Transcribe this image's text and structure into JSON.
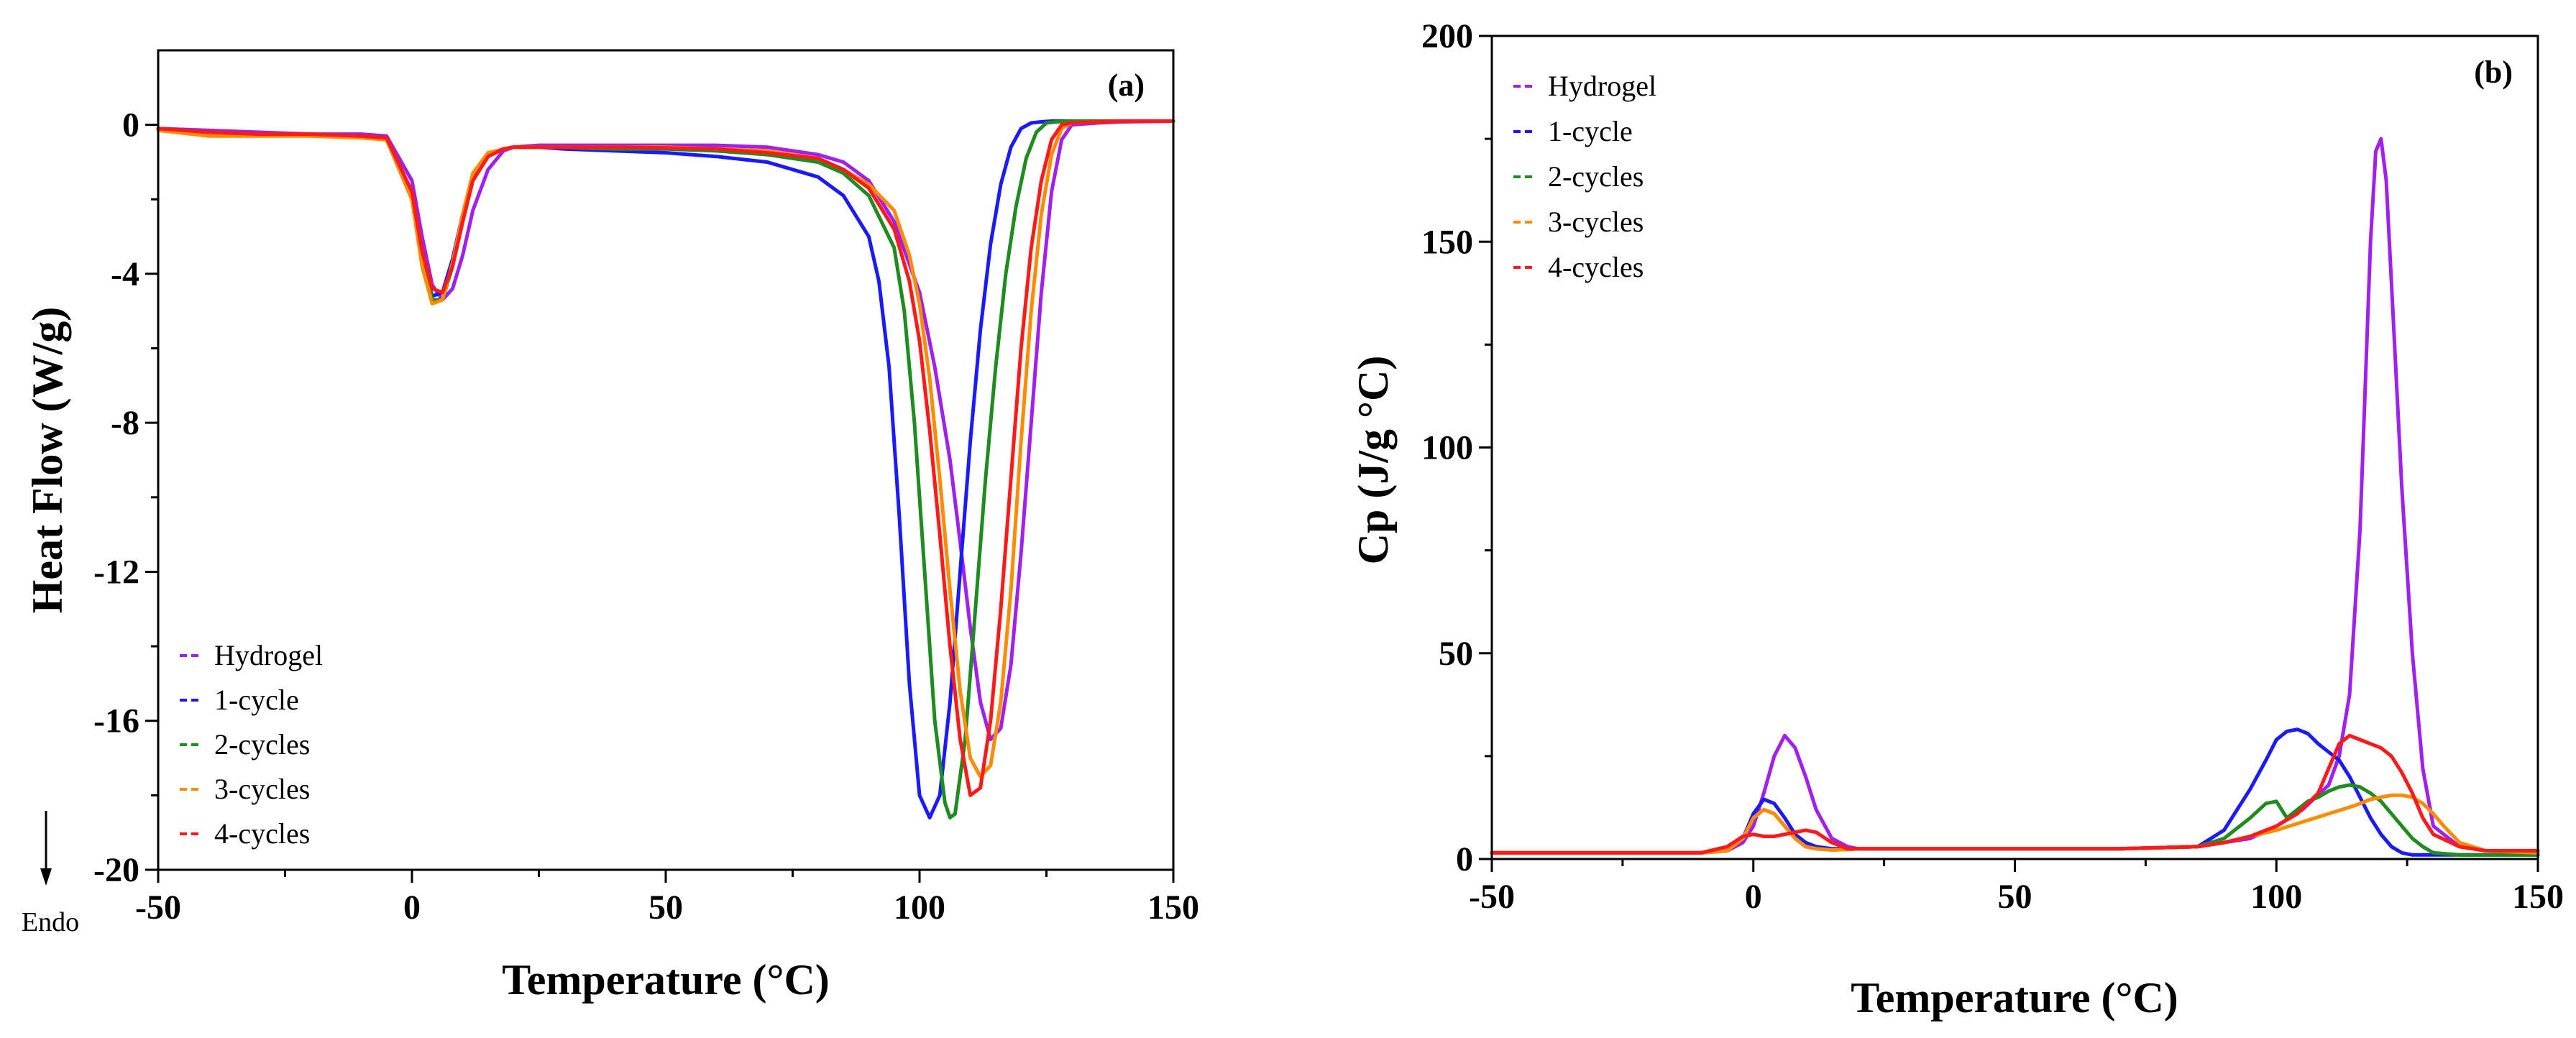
{
  "figure": {
    "colors": {
      "Hydrogel": "#a020f0",
      "1-cycle": "#1a1aff",
      "2-cycles": "#1e8c1e",
      "3-cycles": "#ff8c00",
      "4-cycles": "#ff1a1a"
    },
    "endo_label": "Endo"
  },
  "chart_data": [
    {
      "type": "line",
      "panel": "(a)",
      "xlabel": "Temperature (°C)",
      "ylabel": "Heat Flow (W/g)",
      "xlim": [
        -50,
        150
      ],
      "ylim": [
        -20,
        2
      ],
      "xticks": [
        -50,
        0,
        50,
        100,
        150
      ],
      "yticks": [
        0,
        -4,
        -8,
        -12,
        -16,
        -20
      ],
      "legend": "bottom-left",
      "series": [
        {
          "name": "Hydrogel",
          "x": [
            -50,
            -40,
            -30,
            -20,
            -10,
            -5,
            0,
            2,
            4,
            6,
            8,
            10,
            12,
            15,
            18,
            20,
            25,
            30,
            40,
            50,
            60,
            70,
            80,
            85,
            90,
            95,
            100,
            103,
            106,
            108,
            110,
            112,
            114,
            116,
            118,
            120,
            122,
            124,
            126,
            128,
            130,
            135,
            140,
            150
          ],
          "y": [
            -0.1,
            -0.15,
            -0.2,
            -0.25,
            -0.25,
            -0.3,
            -1.5,
            -3.0,
            -4.3,
            -4.7,
            -4.4,
            -3.5,
            -2.3,
            -1.2,
            -0.7,
            -0.6,
            -0.55,
            -0.55,
            -0.55,
            -0.55,
            -0.55,
            -0.6,
            -0.8,
            -1.0,
            -1.5,
            -2.6,
            -4.5,
            -6.5,
            -9.0,
            -11.2,
            -13.5,
            -15.5,
            -16.5,
            -16.2,
            -14.5,
            -11.5,
            -8.0,
            -4.5,
            -1.8,
            -0.4,
            0.0,
            0.05,
            0.08,
            0.1
          ]
        },
        {
          "name": "1-cycle",
          "x": [
            -50,
            -40,
            -30,
            -20,
            -10,
            -5,
            0,
            2,
            4,
            6,
            8,
            10,
            12,
            15,
            18,
            20,
            25,
            30,
            40,
            50,
            60,
            70,
            80,
            85,
            90,
            92,
            94,
            96,
            98,
            100,
            102,
            104,
            106,
            108,
            110,
            112,
            114,
            116,
            118,
            120,
            122,
            124,
            126,
            130,
            140,
            150
          ],
          "y": [
            -0.1,
            -0.2,
            -0.25,
            -0.25,
            -0.3,
            -0.4,
            -2.0,
            -3.7,
            -4.6,
            -4.5,
            -3.6,
            -2.4,
            -1.4,
            -0.8,
            -0.65,
            -0.6,
            -0.6,
            -0.65,
            -0.7,
            -0.75,
            -0.85,
            -1.0,
            -1.4,
            -1.9,
            -3.0,
            -4.2,
            -6.5,
            -10.5,
            -15.0,
            -18.0,
            -18.6,
            -18.0,
            -15.5,
            -12.0,
            -8.5,
            -5.5,
            -3.2,
            -1.6,
            -0.6,
            -0.1,
            0.05,
            0.08,
            0.1,
            0.1,
            0.1,
            0.1
          ]
        },
        {
          "name": "2-cycles",
          "x": [
            -50,
            -40,
            -30,
            -20,
            -10,
            -5,
            0,
            2,
            4,
            6,
            8,
            10,
            12,
            15,
            18,
            20,
            25,
            30,
            40,
            50,
            60,
            70,
            80,
            85,
            90,
            95,
            97,
            99,
            101,
            103,
            105,
            106,
            107,
            109,
            111,
            113,
            115,
            117,
            119,
            121,
            123,
            125,
            127,
            130,
            140,
            150
          ],
          "y": [
            -0.1,
            -0.2,
            -0.25,
            -0.25,
            -0.3,
            -0.35,
            -1.8,
            -3.5,
            -4.7,
            -4.7,
            -3.8,
            -2.5,
            -1.4,
            -0.8,
            -0.65,
            -0.6,
            -0.6,
            -0.6,
            -0.65,
            -0.65,
            -0.7,
            -0.8,
            -1.0,
            -1.3,
            -1.9,
            -3.3,
            -5.0,
            -8.0,
            -12.0,
            -16.0,
            -18.2,
            -18.6,
            -18.5,
            -16.5,
            -13.0,
            -9.5,
            -6.5,
            -4.0,
            -2.2,
            -0.9,
            -0.2,
            0.05,
            0.08,
            0.1,
            0.1,
            0.1
          ]
        },
        {
          "name": "3-cycles",
          "x": [
            -50,
            -40,
            -30,
            -20,
            -10,
            -5,
            0,
            2,
            4,
            6,
            8,
            10,
            12,
            15,
            18,
            20,
            25,
            30,
            40,
            50,
            60,
            70,
            80,
            85,
            90,
            95,
            98,
            100,
            102,
            104,
            106,
            108,
            110,
            112,
            114,
            116,
            118,
            120,
            122,
            124,
            126,
            128,
            130,
            135,
            140,
            150
          ],
          "y": [
            -0.15,
            -0.3,
            -0.3,
            -0.3,
            -0.35,
            -0.4,
            -2.0,
            -3.8,
            -4.8,
            -4.7,
            -3.7,
            -2.4,
            -1.3,
            -0.75,
            -0.65,
            -0.6,
            -0.6,
            -0.6,
            -0.6,
            -0.6,
            -0.65,
            -0.7,
            -0.9,
            -1.2,
            -1.6,
            -2.3,
            -3.5,
            -4.8,
            -6.8,
            -9.5,
            -12.5,
            -15.2,
            -17.0,
            -17.5,
            -17.2,
            -15.5,
            -12.5,
            -8.5,
            -5.0,
            -2.4,
            -0.8,
            -0.1,
            0.05,
            0.08,
            0.1,
            0.1
          ]
        },
        {
          "name": "4-cycles",
          "x": [
            -50,
            -40,
            -30,
            -20,
            -10,
            -5,
            0,
            2,
            4,
            6,
            8,
            10,
            12,
            15,
            18,
            20,
            25,
            30,
            40,
            50,
            60,
            70,
            80,
            85,
            90,
            95,
            98,
            100,
            102,
            104,
            106,
            108,
            110,
            112,
            114,
            116,
            118,
            120,
            122,
            124,
            126,
            128,
            130,
            135,
            140,
            150
          ],
          "y": [
            -0.1,
            -0.2,
            -0.25,
            -0.25,
            -0.3,
            -0.35,
            -1.8,
            -3.4,
            -4.4,
            -4.5,
            -3.8,
            -2.6,
            -1.5,
            -0.85,
            -0.65,
            -0.6,
            -0.6,
            -0.6,
            -0.6,
            -0.62,
            -0.65,
            -0.75,
            -0.9,
            -1.2,
            -1.7,
            -2.8,
            -4.2,
            -5.8,
            -8.2,
            -11.0,
            -14.0,
            -16.5,
            -18.0,
            -17.8,
            -16.0,
            -13.0,
            -9.5,
            -6.0,
            -3.3,
            -1.5,
            -0.4,
            0.0,
            0.05,
            0.08,
            0.1,
            0.1
          ]
        }
      ]
    },
    {
      "type": "line",
      "panel": "(b)",
      "xlabel": "Temperature (°C)",
      "ylabel": "Cp (J/g °C)",
      "xlim": [
        -50,
        150
      ],
      "ylim": [
        0,
        200
      ],
      "xticks": [
        -50,
        0,
        50,
        100,
        150
      ],
      "yticks": [
        0,
        50,
        100,
        150,
        200
      ],
      "legend": "top-left",
      "series": [
        {
          "name": "Hydrogel",
          "x": [
            -50,
            -40,
            -30,
            -20,
            -10,
            -5,
            -2,
            0,
            2,
            4,
            6,
            8,
            10,
            12,
            15,
            18,
            20,
            30,
            50,
            70,
            85,
            95,
            100,
            105,
            110,
            112,
            114,
            116,
            118,
            119,
            120,
            121,
            122,
            124,
            126,
            128,
            130,
            135,
            140,
            150
          ],
          "y": [
            1.5,
            1.5,
            1.5,
            1.5,
            1.5,
            2,
            4,
            8,
            16,
            25,
            30,
            27,
            20,
            12,
            5,
            3,
            2.5,
            2.5,
            2.5,
            2.5,
            3,
            5,
            8,
            12,
            18,
            25,
            40,
            80,
            150,
            172,
            175,
            165,
            140,
            90,
            50,
            22,
            8,
            3,
            2,
            2
          ]
        },
        {
          "name": "1-cycle",
          "x": [
            -50,
            -40,
            -30,
            -20,
            -10,
            -5,
            -2,
            0,
            2,
            4,
            6,
            8,
            10,
            12,
            15,
            18,
            20,
            30,
            50,
            70,
            85,
            90,
            95,
            98,
            100,
            102,
            104,
            106,
            108,
            110,
            112,
            114,
            116,
            118,
            120,
            122,
            124,
            126,
            128,
            130,
            140,
            150
          ],
          "y": [
            1.5,
            1.5,
            1.5,
            1.5,
            1.5,
            2,
            5,
            11,
            14.5,
            13.5,
            10,
            6,
            4,
            3,
            2.5,
            2.5,
            2.5,
            2.5,
            2.5,
            2.5,
            3,
            7,
            17,
            24,
            29,
            31,
            31.5,
            30.5,
            28,
            26,
            24,
            20,
            15,
            10,
            6,
            3,
            1.5,
            1,
            1,
            1,
            1,
            1
          ]
        },
        {
          "name": "2-cycles",
          "x": [
            -50,
            -40,
            -30,
            -20,
            -10,
            -5,
            -2,
            0,
            2,
            4,
            6,
            8,
            10,
            12,
            15,
            18,
            20,
            30,
            50,
            70,
            85,
            90,
            95,
            98,
            100,
            102,
            104,
            106,
            108,
            110,
            112,
            114,
            116,
            118,
            120,
            122,
            124,
            126,
            128,
            130,
            135,
            140,
            150
          ],
          "y": [
            1.5,
            1.5,
            1.5,
            1.5,
            1.5,
            2,
            5,
            10,
            12,
            11,
            8,
            5,
            3,
            2.5,
            2.2,
            2.3,
            2.5,
            2.5,
            2.5,
            2.5,
            3,
            5,
            10,
            13.5,
            14,
            10,
            12,
            14,
            15,
            16.5,
            17.5,
            18,
            17.5,
            16,
            14,
            11,
            8,
            5,
            3,
            1.5,
            1,
            1,
            1
          ]
        },
        {
          "name": "3-cycles",
          "x": [
            -50,
            -40,
            -30,
            -20,
            -10,
            -5,
            -2,
            0,
            2,
            4,
            6,
            8,
            10,
            12,
            15,
            18,
            20,
            30,
            50,
            70,
            85,
            90,
            95,
            100,
            105,
            110,
            115,
            118,
            120,
            122,
            124,
            126,
            128,
            130,
            132,
            135,
            140,
            150
          ],
          "y": [
            1.5,
            1.5,
            1.5,
            1.5,
            1.5,
            2,
            5,
            10,
            12,
            11,
            8,
            5,
            3,
            2.5,
            2.2,
            2.3,
            2.5,
            2.5,
            2.5,
            2.5,
            3,
            4,
            5.5,
            7,
            9,
            11,
            13,
            14.5,
            15,
            15.5,
            15.5,
            15,
            13.5,
            11,
            8,
            4,
            2,
            1.5
          ]
        },
        {
          "name": "4-cycles",
          "x": [
            -50,
            -40,
            -30,
            -20,
            -10,
            -5,
            -2,
            0,
            2,
            4,
            6,
            8,
            10,
            12,
            15,
            18,
            20,
            30,
            50,
            70,
            85,
            90,
            95,
            100,
            104,
            108,
            110,
            112,
            114,
            116,
            118,
            120,
            122,
            124,
            126,
            128,
            130,
            135,
            140,
            150
          ],
          "y": [
            1.5,
            1.5,
            1.5,
            1.5,
            1.5,
            3,
            5.5,
            6,
            5.5,
            5.5,
            6,
            6.5,
            7,
            6.5,
            4,
            2.5,
            2.5,
            2.5,
            2.5,
            2.5,
            3,
            4,
            5.5,
            8,
            11,
            16,
            22,
            28,
            30,
            29,
            28,
            27,
            25,
            21,
            16,
            10,
            6,
            3,
            2,
            2
          ]
        }
      ]
    }
  ]
}
